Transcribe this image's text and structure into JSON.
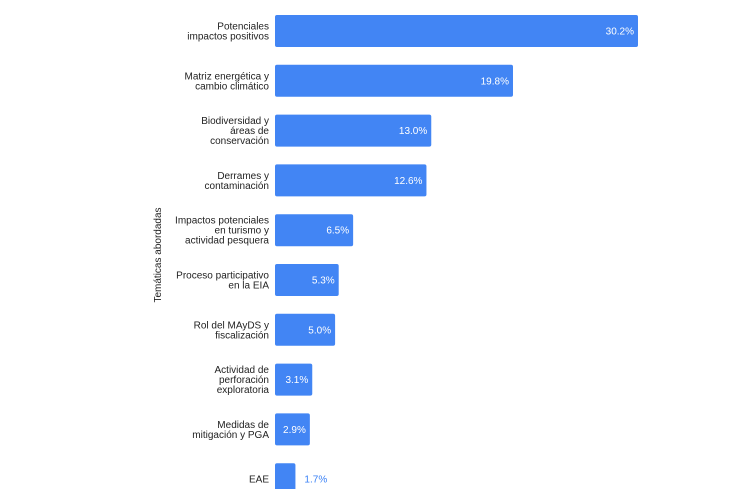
{
  "chart_data": {
    "type": "bar",
    "orientation": "horizontal",
    "ylabel": "Temáticas abordadas",
    "categories": [
      [
        "Potenciales",
        "impactos positivos"
      ],
      [
        "Matriz energética y",
        "cambio climático"
      ],
      [
        "Biodiversidad y",
        "áreas de",
        "conservación"
      ],
      [
        "Derrames y",
        "contaminación"
      ],
      [
        "Impactos potenciales",
        "en turismo y",
        "actividad pesquera"
      ],
      [
        "Proceso participativo",
        "en la EIA"
      ],
      [
        "Rol del MAyDS y",
        "fiscalización"
      ],
      [
        "Actividad de",
        "perforación",
        "exploratoria"
      ],
      [
        "Medidas de",
        "mitigación y PGA"
      ],
      [
        "EAE"
      ]
    ],
    "values": [
      30.2,
      19.8,
      13.0,
      12.6,
      6.5,
      5.3,
      5.0,
      3.1,
      2.9,
      1.7
    ],
    "value_labels": [
      "30.2%",
      "19.8%",
      "13.0%",
      "12.6%",
      "6.5%",
      "5.3%",
      "5.0%",
      "3.1%",
      "2.9%",
      "1.7%"
    ],
    "xlim": [
      0,
      30.2
    ],
    "bar_color": "#4285f4",
    "grid": false
  }
}
